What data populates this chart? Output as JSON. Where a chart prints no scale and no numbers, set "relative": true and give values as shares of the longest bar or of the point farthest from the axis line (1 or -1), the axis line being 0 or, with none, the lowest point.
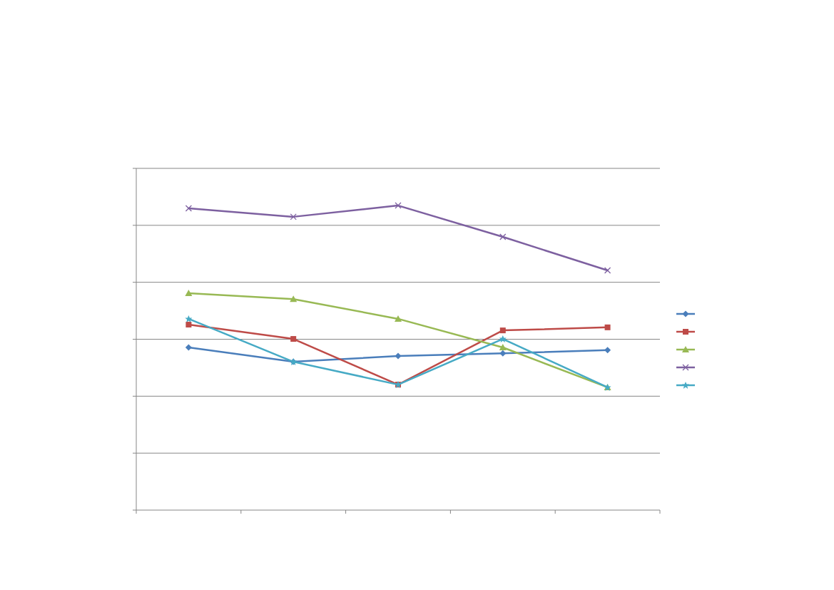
{
  "chart_data": {
    "type": "line",
    "relative": true,
    "categories": [
      null,
      null,
      null,
      null,
      null
    ],
    "grid": "y",
    "series": [
      {
        "color": "#4a7ebb",
        "marker": "diamond",
        "values": [
          0.534,
          0.487,
          0.506,
          0.515,
          0.525
        ]
      },
      {
        "color": "#be4b48",
        "marker": "square",
        "values": [
          0.609,
          0.562,
          0.412,
          0.59,
          0.6
        ]
      },
      {
        "color": "#98b954",
        "marker": "triangle",
        "values": [
          0.712,
          0.693,
          0.628,
          0.534,
          0.403
        ]
      },
      {
        "color": "#7d60a0",
        "marker": "cross",
        "values": [
          0.991,
          0.963,
          1,
          0.897,
          0.787
        ]
      },
      {
        "color": "#46aac5",
        "marker": "star",
        "values": [
          0.628,
          0.487,
          0.412,
          0.562,
          0.403
        ]
      }
    ]
  }
}
